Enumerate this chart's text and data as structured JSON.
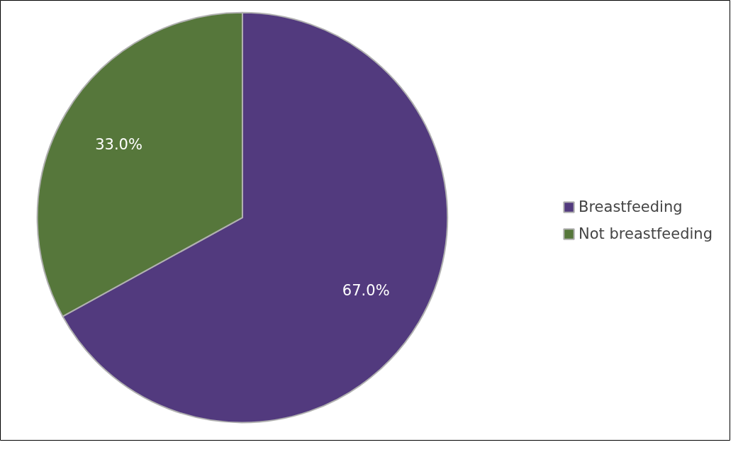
{
  "chart_data": {
    "type": "pie",
    "categories": [
      "Breastfeeding",
      "Not breastfeeding"
    ],
    "values": [
      67.0,
      33.0
    ],
    "colors": [
      "#523a7e",
      "#56773b"
    ],
    "value_labels": [
      "67.0%",
      "33.0%"
    ],
    "legend": "right"
  }
}
